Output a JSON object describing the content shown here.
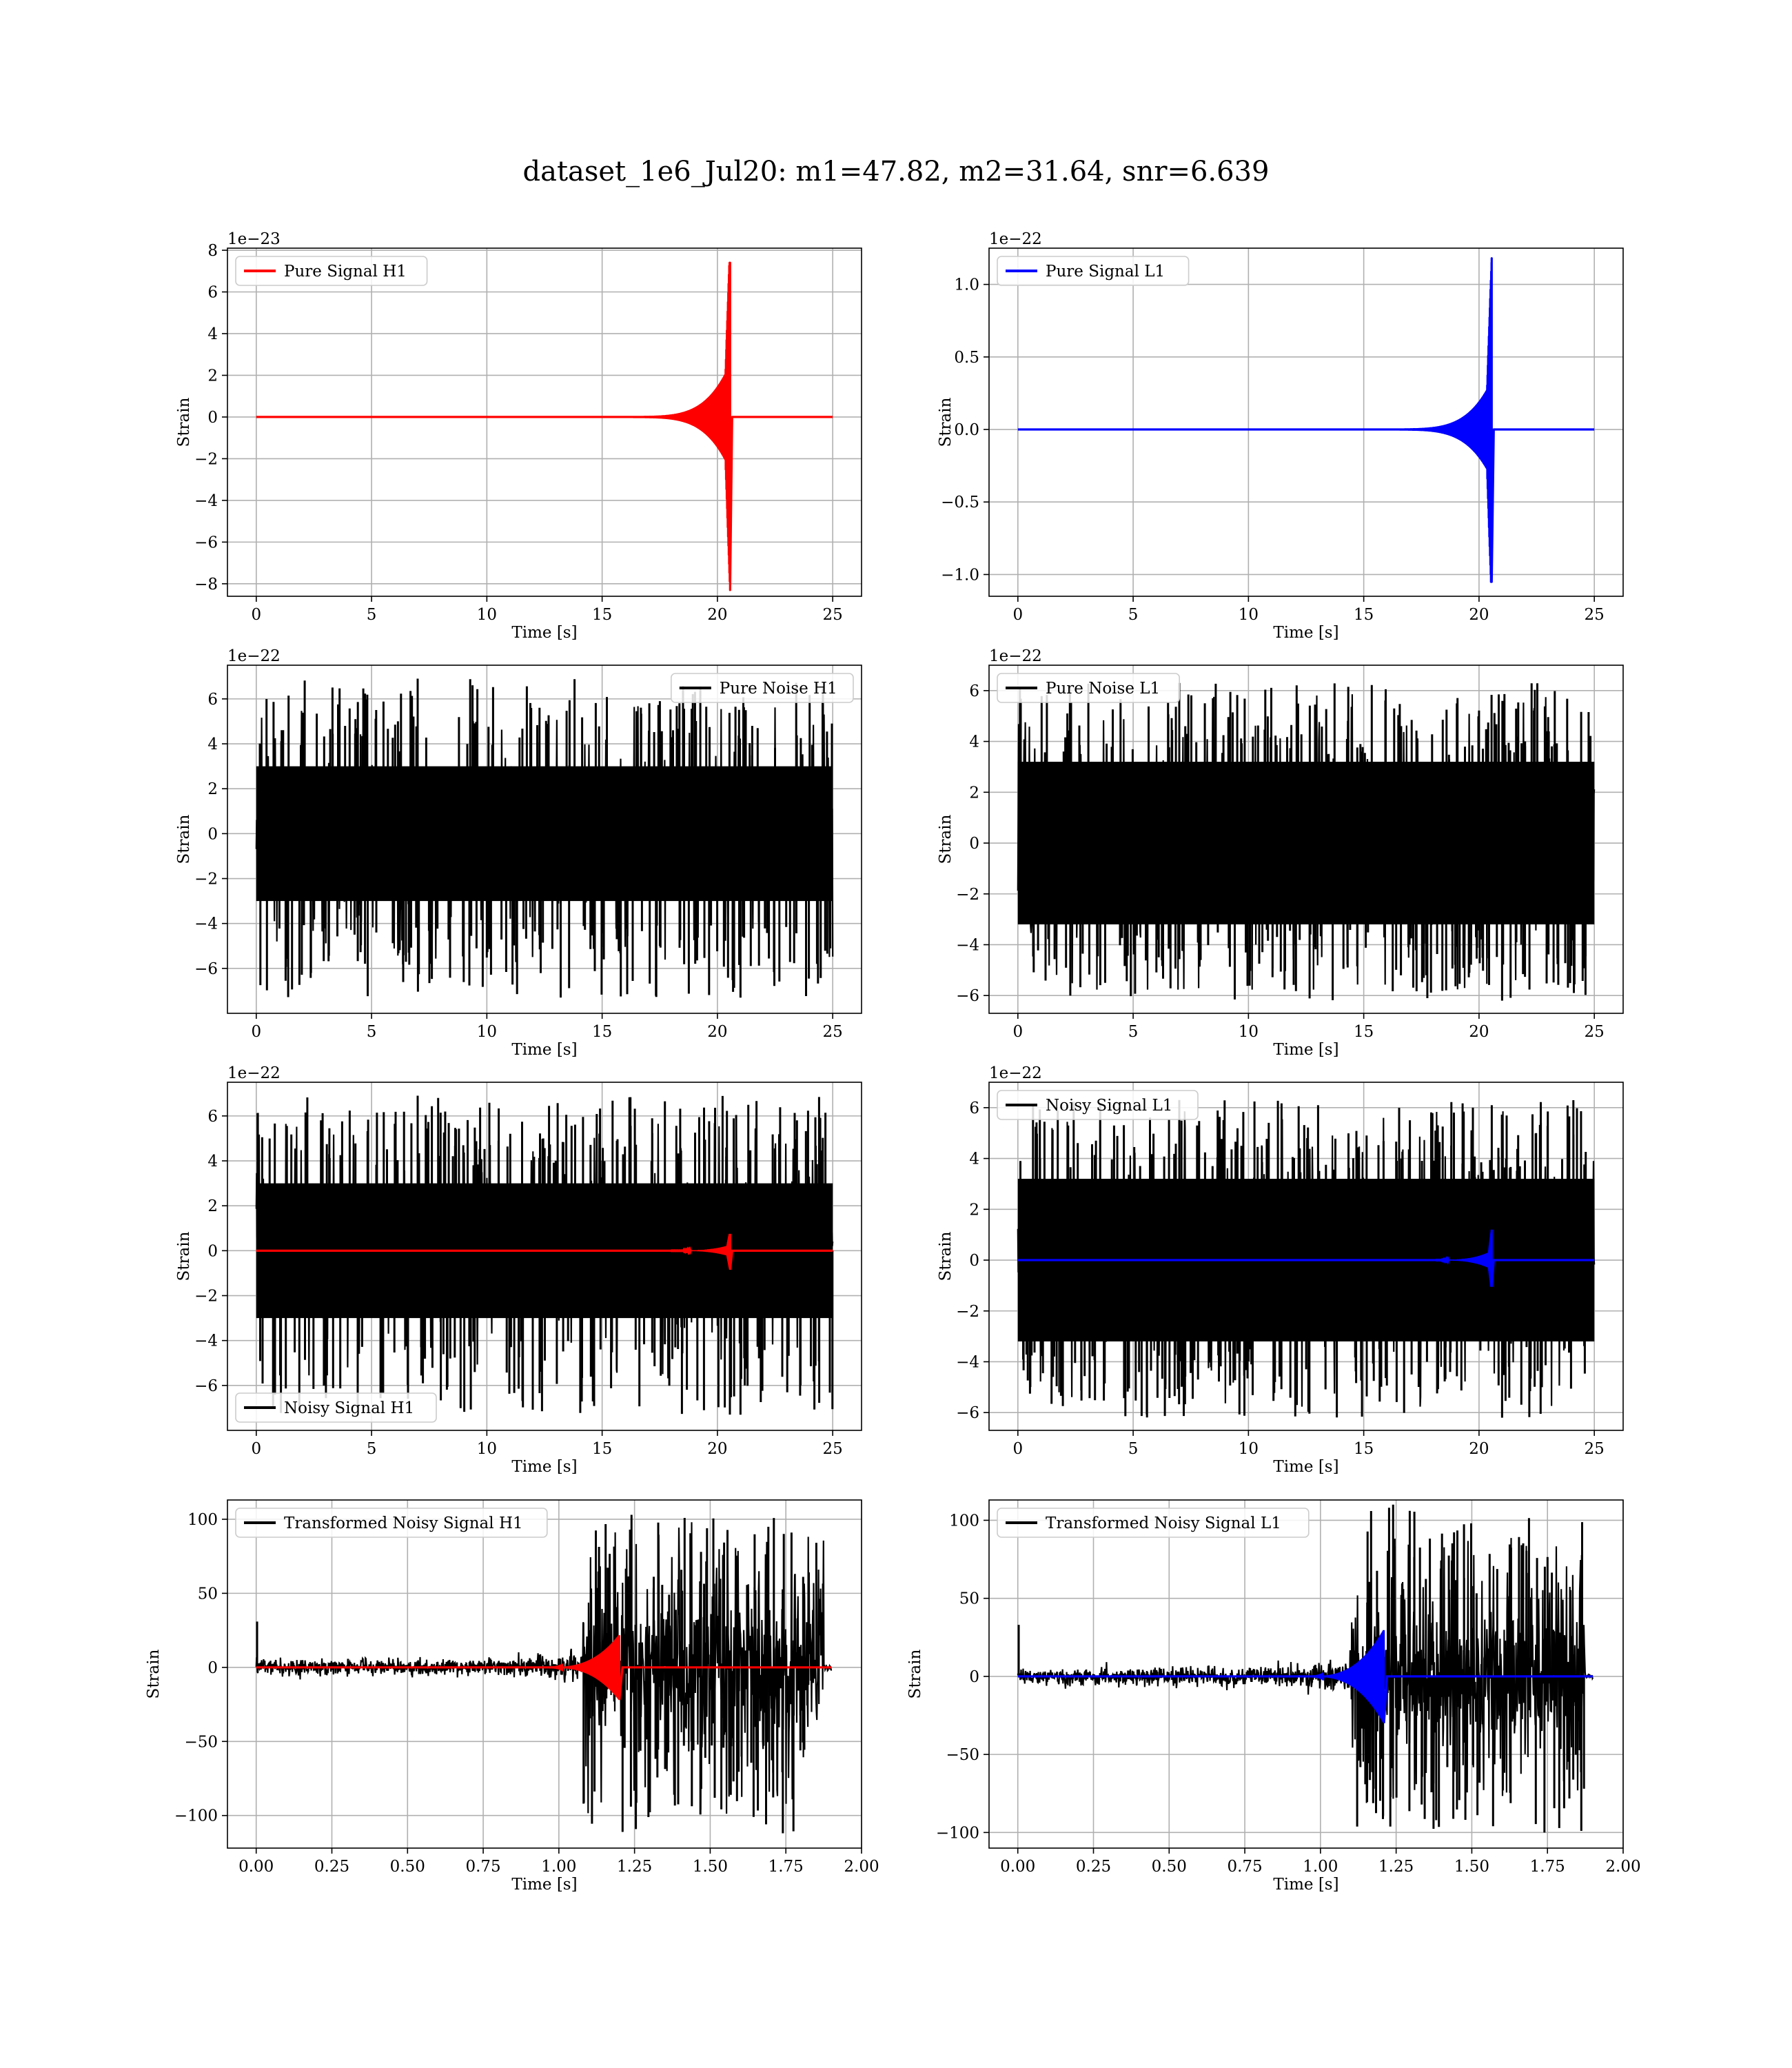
{
  "title": "dataset_1e6_Jul20: m1=47.82, m2=31.64, snr=6.639",
  "chart_data": [
    {
      "id": "pure-signal-h1",
      "type": "line",
      "kind": "chirp",
      "xlabel": "Time [s]",
      "ylabel": "Strain",
      "multiplier": "1e−23",
      "xlim": [
        -1.25,
        26.25
      ],
      "ylim": [
        -8.6,
        8.1
      ],
      "xticks": [
        0,
        5,
        10,
        15,
        20,
        25
      ],
      "xtick_labels": [
        "0",
        "5",
        "10",
        "15",
        "20",
        "25"
      ],
      "yticks": [
        -8,
        -6,
        -4,
        -2,
        0,
        2,
        4,
        6,
        8
      ],
      "ytick_labels": [
        "−8",
        "−6",
        "−4",
        "−2",
        "0",
        "2",
        "4",
        "6",
        "8"
      ],
      "grid": true,
      "legend": "upper-left",
      "series": [
        {
          "name": "Pure Signal H1",
          "color": "#ff0000",
          "t_end": 25,
          "merger": 20.55,
          "peak_max": 7.4,
          "peak_min": -8.3,
          "amp_late": 2.5
        }
      ]
    },
    {
      "id": "pure-signal-l1",
      "type": "line",
      "kind": "chirp",
      "xlabel": "Time [s]",
      "ylabel": "Strain",
      "multiplier": "1e−22",
      "xlim": [
        -1.25,
        26.25
      ],
      "ylim": [
        -1.15,
        1.25
      ],
      "xticks": [
        0,
        5,
        10,
        15,
        20,
        25
      ],
      "xtick_labels": [
        "0",
        "5",
        "10",
        "15",
        "20",
        "25"
      ],
      "yticks": [
        -1.0,
        -0.5,
        0.0,
        0.5,
        1.0
      ],
      "ytick_labels": [
        "−1.0",
        "−0.5",
        "0.0",
        "0.5",
        "1.0"
      ],
      "grid": true,
      "legend": "upper-left",
      "series": [
        {
          "name": "Pure Signal L1",
          "color": "#0000ff",
          "t_end": 25,
          "merger": 20.55,
          "peak_max": 1.18,
          "peak_min": -1.05,
          "amp_late": 0.33
        }
      ]
    },
    {
      "id": "pure-noise-h1",
      "type": "line",
      "kind": "noise",
      "xlabel": "Time [s]",
      "ylabel": "Strain",
      "multiplier": "1e−22",
      "xlim": [
        -1.25,
        26.25
      ],
      "ylim": [
        -8.0,
        7.5
      ],
      "xticks": [
        0,
        5,
        10,
        15,
        20,
        25
      ],
      "xtick_labels": [
        "0",
        "5",
        "10",
        "15",
        "20",
        "25"
      ],
      "yticks": [
        -6,
        -4,
        -2,
        0,
        2,
        4,
        6
      ],
      "ytick_labels": [
        "−6",
        "−4",
        "−2",
        "0",
        "2",
        "4",
        "6"
      ],
      "grid": true,
      "legend": "upper-right",
      "series": [
        {
          "name": "Pure Noise H1",
          "color": "#000000",
          "t_end": 25,
          "core": 3.0,
          "peak_max": 6.9,
          "peak_min": -7.3
        }
      ]
    },
    {
      "id": "pure-noise-l1",
      "type": "line",
      "kind": "noise",
      "xlabel": "Time [s]",
      "ylabel": "Strain",
      "multiplier": "1e−22",
      "xlim": [
        -1.25,
        26.25
      ],
      "ylim": [
        -6.7,
        7.0
      ],
      "xticks": [
        0,
        5,
        10,
        15,
        20,
        25
      ],
      "xtick_labels": [
        "0",
        "5",
        "10",
        "15",
        "20",
        "25"
      ],
      "yticks": [
        -6,
        -4,
        -2,
        0,
        2,
        4,
        6
      ],
      "ytick_labels": [
        "−6",
        "−4",
        "−2",
        "0",
        "2",
        "4",
        "6"
      ],
      "grid": true,
      "legend": "upper-left",
      "series": [
        {
          "name": "Pure Noise L1",
          "color": "#000000",
          "t_end": 25,
          "core": 3.2,
          "peak_max": 6.3,
          "peak_min": -6.2
        }
      ]
    },
    {
      "id": "noisy-signal-h1",
      "type": "line",
      "kind": "noisy",
      "xlabel": "Time [s]",
      "ylabel": "Strain",
      "multiplier": "1e−22",
      "xlim": [
        -1.25,
        26.25
      ],
      "ylim": [
        -8.0,
        7.5
      ],
      "xticks": [
        0,
        5,
        10,
        15,
        20,
        25
      ],
      "xtick_labels": [
        "0",
        "5",
        "10",
        "15",
        "20",
        "25"
      ],
      "yticks": [
        -6,
        -4,
        -2,
        0,
        2,
        4,
        6
      ],
      "ytick_labels": [
        "−6",
        "−4",
        "−2",
        "0",
        "2",
        "4",
        "6"
      ],
      "grid": true,
      "legend": "lower-left",
      "series": [
        {
          "name": "Noisy Signal H1",
          "color": "#000000",
          "t_end": 25,
          "core": 3.0,
          "peak_max": 6.9,
          "peak_min": -7.3,
          "overlay_color": "#ff0000",
          "merger": 20.55,
          "overlay_max": 0.75,
          "overlay_min": -0.85,
          "overlay_late": 0.25
        }
      ]
    },
    {
      "id": "noisy-signal-l1",
      "type": "line",
      "kind": "noisy",
      "xlabel": "Time [s]",
      "ylabel": "Strain",
      "multiplier": "1e−22",
      "xlim": [
        -1.25,
        26.25
      ],
      "ylim": [
        -6.7,
        7.0
      ],
      "xticks": [
        0,
        5,
        10,
        15,
        20,
        25
      ],
      "xtick_labels": [
        "0",
        "5",
        "10",
        "15",
        "20",
        "25"
      ],
      "yticks": [
        -6,
        -4,
        -2,
        0,
        2,
        4,
        6
      ],
      "ytick_labels": [
        "−6",
        "−4",
        "−2",
        "0",
        "2",
        "4",
        "6"
      ],
      "grid": true,
      "legend": "upper-left",
      "series": [
        {
          "name": "Noisy Signal L1",
          "color": "#000000",
          "t_end": 25,
          "core": 3.2,
          "peak_max": 6.3,
          "peak_min": -6.2,
          "overlay_color": "#0000ff",
          "merger": 20.55,
          "overlay_max": 1.2,
          "overlay_min": -1.05,
          "overlay_late": 0.35
        }
      ]
    },
    {
      "id": "transformed-noisy-signal-h1",
      "type": "line",
      "kind": "transformed",
      "xlabel": "Time [s]",
      "ylabel": "Strain",
      "multiplier": "",
      "xlim": [
        -0.095,
        2.0
      ],
      "ylim": [
        -122,
        113
      ],
      "xticks": [
        0.0,
        0.25,
        0.5,
        0.75,
        1.0,
        1.25,
        1.5,
        1.75,
        2.0
      ],
      "xtick_labels": [
        "0.00",
        "0.25",
        "0.50",
        "0.75",
        "1.00",
        "1.25",
        "1.50",
        "1.75",
        "2.00"
      ],
      "yticks": [
        -100,
        -50,
        0,
        50,
        100
      ],
      "ytick_labels": [
        "−100",
        "−50",
        "0",
        "50",
        "100"
      ],
      "grid": true,
      "legend": "upper-left",
      "series": [
        {
          "name": "Transformed Noisy Signal H1",
          "color": "#000000",
          "t_end": 1.9,
          "loud_start": 1.08,
          "loud_end": 1.875,
          "quiet_amp": 6,
          "loud_amp": 55,
          "peak_max": 103,
          "peak_min": -112,
          "overlay_color": "#ff0000",
          "merger": 1.2,
          "overlay_max": 22,
          "overlay_min": -22,
          "overlay_start": 0.95
        }
      ]
    },
    {
      "id": "transformed-noisy-signal-l1",
      "type": "line",
      "kind": "transformed",
      "xlabel": "Time [s]",
      "ylabel": "Strain",
      "multiplier": "",
      "xlim": [
        -0.095,
        2.0
      ],
      "ylim": [
        -110,
        113
      ],
      "xticks": [
        0.0,
        0.25,
        0.5,
        0.75,
        1.0,
        1.25,
        1.5,
        1.75,
        2.0
      ],
      "xtick_labels": [
        "0.00",
        "0.25",
        "0.50",
        "0.75",
        "1.00",
        "1.25",
        "1.50",
        "1.75",
        "2.00"
      ],
      "yticks": [
        -100,
        -50,
        0,
        50,
        100
      ],
      "ytick_labels": [
        "−100",
        "−50",
        "0",
        "50",
        "100"
      ],
      "grid": true,
      "legend": "upper-left",
      "series": [
        {
          "name": "Transformed Noisy Signal L1",
          "color": "#000000",
          "t_end": 1.9,
          "loud_start": 1.1,
          "loud_end": 1.875,
          "quiet_amp": 6,
          "loud_amp": 50,
          "peak_max": 110,
          "peak_min": -100,
          "overlay_color": "#0000ff",
          "merger": 1.21,
          "overlay_max": 30,
          "overlay_min": -30,
          "overlay_start": 0.95
        }
      ]
    }
  ]
}
